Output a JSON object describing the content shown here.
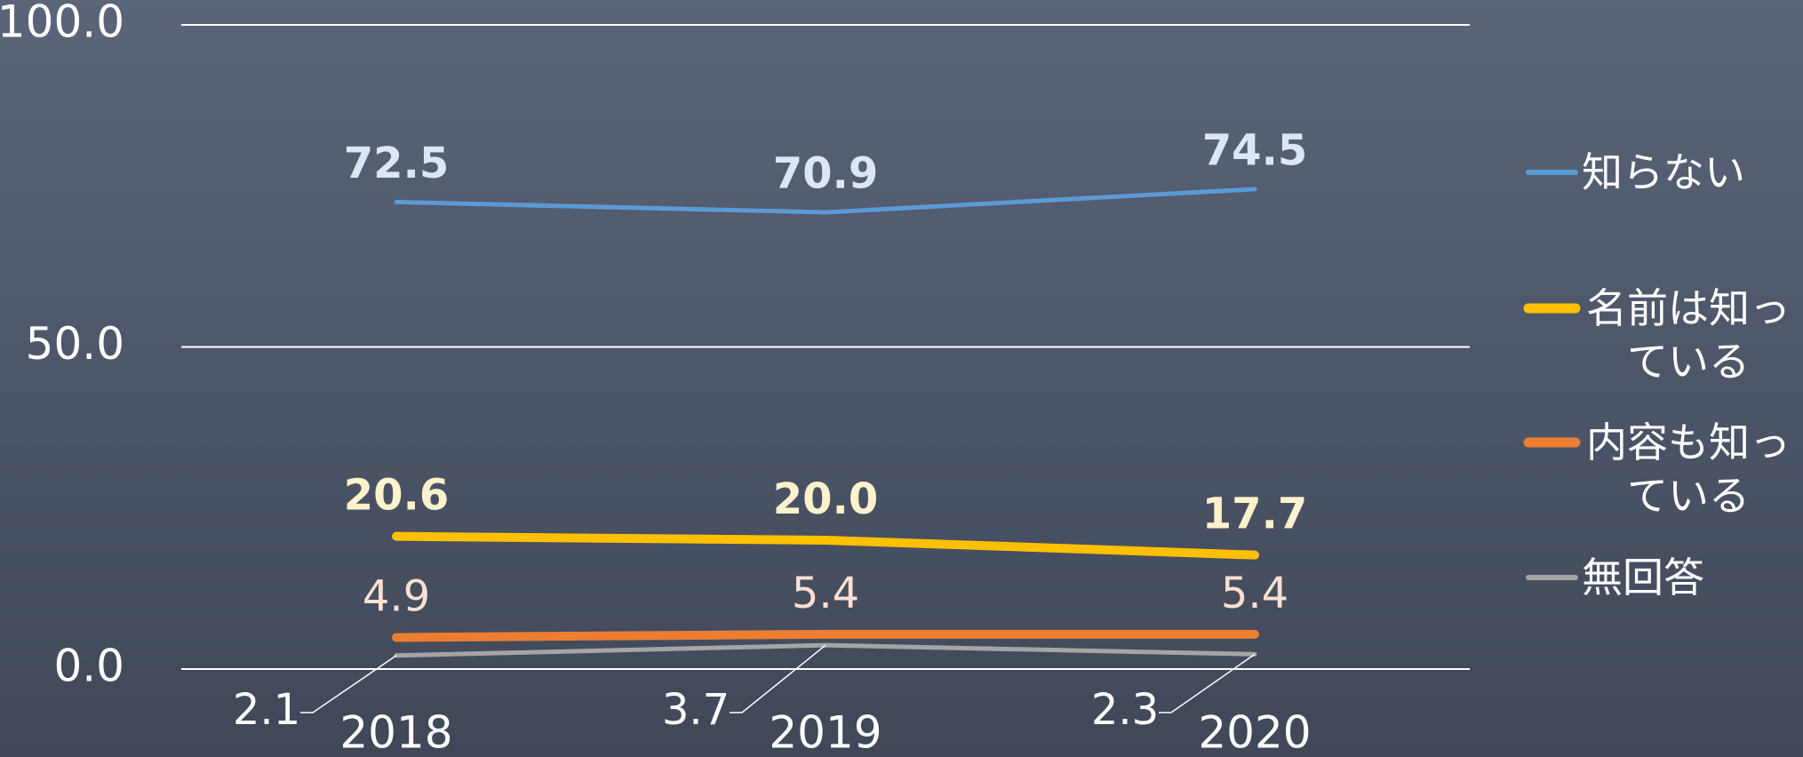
{
  "chart_data": {
    "type": "line",
    "categories": [
      "2018",
      "2019",
      "2020"
    ],
    "series": [
      {
        "name": "知らない",
        "color": "#5b9bd5",
        "values": [
          72.5,
          70.9,
          74.5
        ],
        "value_labels": [
          "72.5",
          "70.9",
          "74.5"
        ]
      },
      {
        "name": "名前は知っている",
        "color": "#ffc000",
        "values": [
          20.6,
          20.0,
          17.7
        ],
        "value_labels": [
          "20.6",
          "20.0",
          "17.7"
        ]
      },
      {
        "name": "内容も知っている",
        "color": "#ed7d31",
        "values": [
          4.9,
          5.4,
          5.4
        ],
        "value_labels": [
          "4.9",
          "5.4",
          "5.4"
        ]
      },
      {
        "name": "無回答",
        "color": "#a5a5a5",
        "values": [
          2.1,
          3.7,
          2.3
        ],
        "value_labels": [
          "2.1",
          "3.7",
          "2.3"
        ]
      }
    ],
    "ylim": [
      0,
      100
    ],
    "yticks": [
      {
        "value": 0,
        "label": "0.0"
      },
      {
        "value": 50,
        "label": "50.0"
      },
      {
        "value": 100,
        "label": "100.0"
      }
    ],
    "grid": true,
    "legend": "right"
  }
}
